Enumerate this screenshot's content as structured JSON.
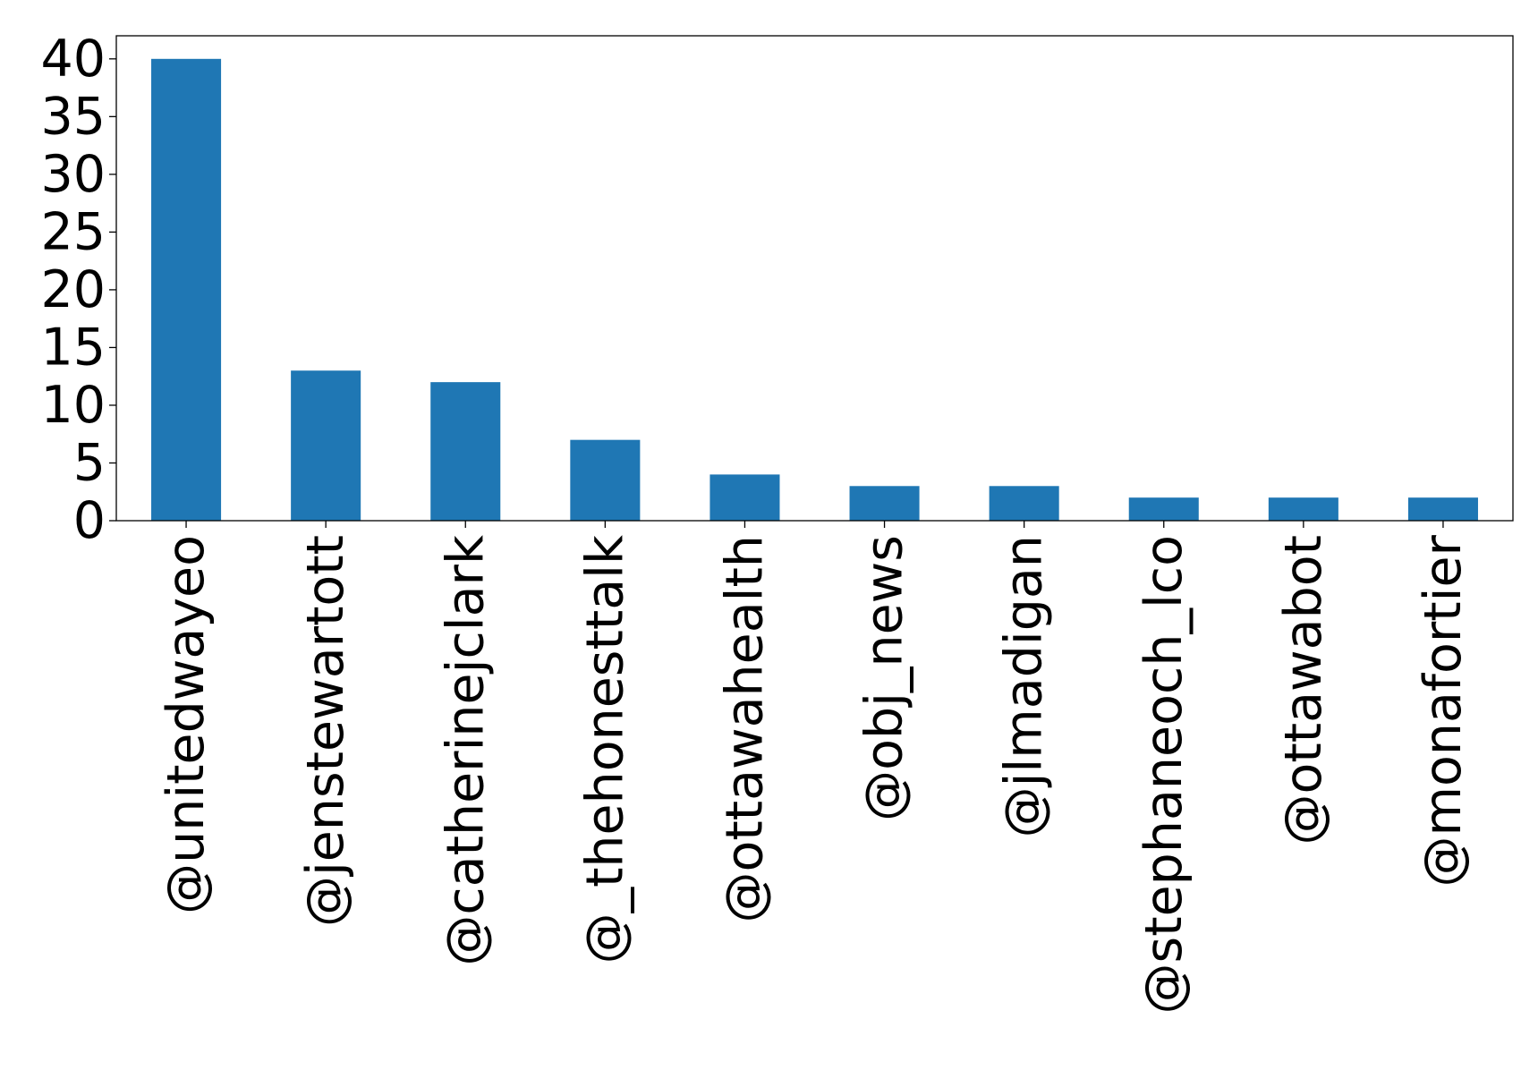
{
  "chart_data": {
    "type": "bar",
    "title": "",
    "xlabel": "",
    "ylabel": "",
    "categories": [
      "@unitedwayeo",
      "@jenstewartott",
      "@catherinejclark",
      "@_thehonesttalk",
      "@ottawahealth",
      "@obj_news",
      "@jlmadigan",
      "@stephaneoch_lco",
      "@ottawabot",
      "@monafortier"
    ],
    "values": [
      40,
      13,
      12,
      7,
      4,
      3,
      3,
      2,
      2,
      2
    ],
    "ylim": [
      0,
      42
    ],
    "yticks": [
      0,
      5,
      10,
      15,
      20,
      25,
      30,
      35,
      40
    ],
    "grid": false,
    "legend": "none",
    "bar_color": "#1f77b4"
  }
}
